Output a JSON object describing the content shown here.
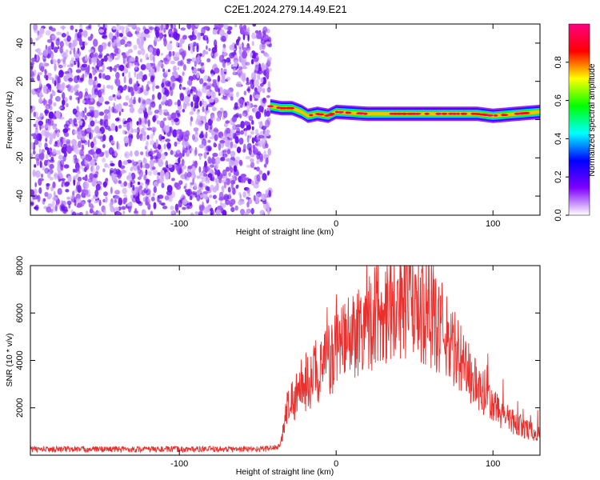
{
  "title": "C2E1.2024.279.14.49.E21",
  "chart_data": [
    {
      "type": "heatmap",
      "name": "spectrogram",
      "xlabel": "Height of straight line (km)",
      "ylabel": "Frequency (Hz)",
      "xlim": [
        -195,
        130
      ],
      "ylim": [
        -50,
        50
      ],
      "xticks": [
        -100,
        0,
        100
      ],
      "yticks": [
        -40,
        -20,
        0,
        20,
        40
      ],
      "noise_region_x": [
        -195,
        -42
      ],
      "signal_band": [
        {
          "x": -42,
          "freq": 7
        },
        {
          "x": -35,
          "freq": 6
        },
        {
          "x": -28,
          "freq": 6
        },
        {
          "x": -22,
          "freq": 4
        },
        {
          "x": -18,
          "freq": 2
        },
        {
          "x": -12,
          "freq": 3
        },
        {
          "x": -5,
          "freq": 2
        },
        {
          "x": 0,
          "freq": 4
        },
        {
          "x": 20,
          "freq": 3
        },
        {
          "x": 60,
          "freq": 3
        },
        {
          "x": 90,
          "freq": 3
        },
        {
          "x": 100,
          "freq": 2
        },
        {
          "x": 115,
          "freq": 3
        },
        {
          "x": 130,
          "freq": 4
        }
      ],
      "colorbar": {
        "label": "Normalized spectral amplitude",
        "range": [
          0,
          1
        ],
        "ticks": [
          0.0,
          0.2,
          0.4,
          0.6,
          0.8
        ],
        "tick_labels": [
          "0.0",
          "0.2",
          "0.4",
          "0.6",
          "0.8"
        ],
        "colors": [
          "#ffffff",
          "#7f00ff",
          "#0000ff",
          "#00ffff",
          "#00ff00",
          "#ffff00",
          "#ff0000",
          "#ff0080"
        ]
      }
    },
    {
      "type": "line",
      "name": "snr",
      "xlabel": "Height of straight line (km)",
      "ylabel": "SNR (10 * v/v)",
      "xlim": [
        -195,
        130
      ],
      "ylim": [
        0,
        8000
      ],
      "xticks": [
        -100,
        0,
        100
      ],
      "yticks": [
        2000,
        4000,
        6000,
        8000
      ],
      "color": "#e8312e",
      "series": [
        {
          "x": [
            -195,
            -180,
            -160,
            -140,
            -120,
            -100,
            -80,
            -60,
            -45,
            -36,
            -33,
            -30,
            -27,
            -25,
            -22,
            -20,
            -16,
            -12,
            -8,
            -4,
            0,
            5,
            10,
            15,
            20,
            25,
            30,
            35,
            40,
            45,
            50,
            55,
            60,
            65,
            70,
            75,
            80,
            85,
            90,
            95,
            100,
            105,
            110,
            115,
            120,
            125,
            130
          ],
          "values": [
            200,
            200,
            200,
            200,
            200,
            200,
            200,
            200,
            220,
            300,
            1500,
            2800,
            2500,
            3000,
            2800,
            3200,
            3600,
            3900,
            4200,
            4400,
            4800,
            5200,
            5600,
            6000,
            6300,
            6600,
            6900,
            7100,
            7250,
            7300,
            7200,
            7000,
            6600,
            6100,
            5600,
            5000,
            4400,
            3800,
            3200,
            2700,
            2300,
            2000,
            1700,
            1500,
            1300,
            1100,
            1000
          ]
        }
      ]
    }
  ]
}
